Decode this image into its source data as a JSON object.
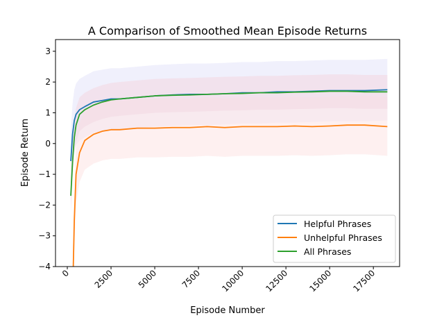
{
  "chart_data": {
    "type": "line",
    "title": "A Comparison of Smoothed Mean Episode Returns",
    "xlabel": "Episode Number",
    "ylabel": "Episode Return",
    "xlim": [
      -675,
      19000
    ],
    "ylim": [
      -4,
      3.38
    ],
    "xticks": [
      0,
      2500,
      5000,
      7500,
      10000,
      12500,
      15000,
      17500
    ],
    "xtick_labels": [
      "0",
      "2500",
      "5000",
      "7500",
      "10000",
      "12500",
      "15000",
      "17500"
    ],
    "yticks": [
      -4,
      -3,
      -2,
      -1,
      0,
      1,
      2,
      3
    ],
    "ytick_labels": [
      "−4",
      "−3",
      "−2",
      "−1",
      "0",
      "1",
      "2",
      "3"
    ],
    "grid": false,
    "legend_position": "lower-right",
    "series": [
      {
        "name": "Helpful Phrases",
        "color": "#1f77b4",
        "band_color": "#e6e6fa",
        "band_halfwidth": 1.0,
        "x": [
          200,
          300,
          400,
          500,
          700,
          1000,
          1500,
          2000,
          2500,
          3000,
          4000,
          5000,
          6000,
          7000,
          8000,
          9000,
          10000,
          11000,
          12000,
          13000,
          14000,
          15000,
          16000,
          17000,
          18300
        ],
        "y": [
          -0.57,
          0.3,
          0.75,
          0.95,
          1.1,
          1.2,
          1.35,
          1.4,
          1.45,
          1.45,
          1.5,
          1.55,
          1.58,
          1.6,
          1.6,
          1.62,
          1.65,
          1.65,
          1.68,
          1.68,
          1.7,
          1.72,
          1.72,
          1.72,
          1.75
        ]
      },
      {
        "name": "Unhelpful Phrases",
        "color": "#ff7f0e",
        "band_color": "#fde6e6",
        "band_halfwidth": 0.95,
        "x": [
          330,
          400,
          500,
          700,
          1000,
          1500,
          2000,
          2500,
          3000,
          4000,
          5000,
          6000,
          7000,
          8000,
          9000,
          10000,
          11000,
          12000,
          13000,
          14000,
          15000,
          16000,
          17000,
          18300
        ],
        "y": [
          -4.3,
          -2.5,
          -1.0,
          -0.3,
          0.1,
          0.3,
          0.4,
          0.45,
          0.45,
          0.5,
          0.5,
          0.52,
          0.52,
          0.55,
          0.52,
          0.55,
          0.55,
          0.55,
          0.57,
          0.55,
          0.57,
          0.6,
          0.6,
          0.55
        ]
      },
      {
        "name": "All Phrases",
        "color": "#2ca02c",
        "band_color": "#f3d9e3",
        "band_halfwidth": 0.55,
        "x": [
          200,
          300,
          400,
          500,
          700,
          1000,
          1500,
          2000,
          2500,
          3000,
          4000,
          5000,
          6000,
          7000,
          8000,
          9000,
          10000,
          11000,
          12000,
          13000,
          14000,
          15000,
          16000,
          17000,
          18300
        ],
        "y": [
          -1.7,
          -0.6,
          0.2,
          0.6,
          0.95,
          1.1,
          1.25,
          1.35,
          1.42,
          1.45,
          1.5,
          1.55,
          1.57,
          1.58,
          1.6,
          1.62,
          1.63,
          1.65,
          1.65,
          1.67,
          1.68,
          1.7,
          1.7,
          1.68,
          1.68
        ]
      }
    ]
  }
}
